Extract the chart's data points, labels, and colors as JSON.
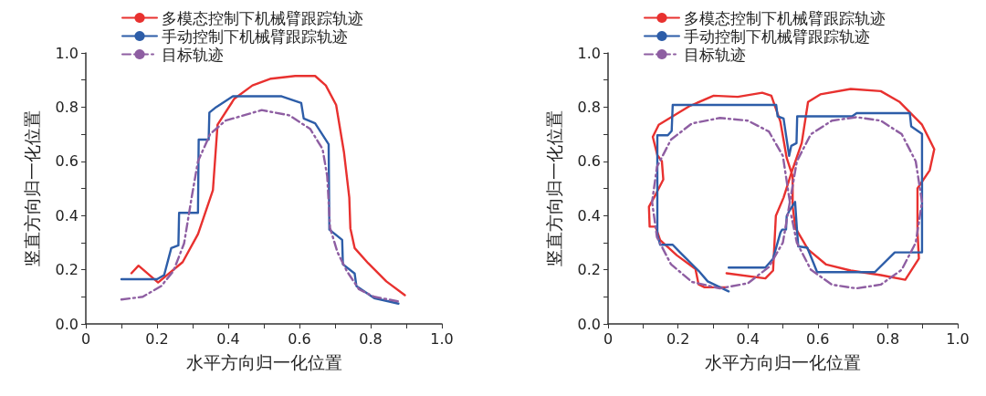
{
  "chart_data": [
    {
      "type": "line",
      "xlabel": "水平方向归一化位置",
      "ylabel": "竖直方向归一化位置",
      "xlim": [
        0,
        1
      ],
      "ylim": [
        0,
        1
      ],
      "xticks": [
        {
          "value": 0,
          "label": "0"
        },
        {
          "value": 0.1,
          "label": null
        },
        0.2,
        {
          "value": 0.3,
          "label": null
        },
        0.4,
        {
          "value": 0.5,
          "label": null
        },
        0.6,
        {
          "value": 0.7,
          "label": null
        },
        0.8,
        {
          "value": 0.9,
          "label": null
        },
        {
          "value": 1,
          "label": "1.0"
        }
      ],
      "yticks": [
        {
          "value": 0,
          "label": "0.0"
        },
        {
          "value": 0.1,
          "label": null
        },
        0.2,
        {
          "value": 0.3,
          "label": null
        },
        0.4,
        {
          "value": 0.5,
          "label": null
        },
        0.6,
        {
          "value": 0.7,
          "label": null
        },
        0.8,
        {
          "value": 0.9,
          "label": null
        },
        {
          "value": 1,
          "label": "1.0"
        }
      ],
      "grid": false,
      "legend": "top",
      "marker": "none",
      "series": [
        {
          "name": "多模态控制下机械臂跟踪轨迹",
          "color": "#e8312f",
          "line_style": "solid",
          "x": [
            0.128,
            0.148,
            0.203,
            0.272,
            0.315,
            0.357,
            0.37,
            0.417,
            0.468,
            0.52,
            0.588,
            0.644,
            0.674,
            0.703,
            0.725,
            0.74,
            0.743,
            0.755,
            0.793,
            0.844,
            0.896
          ],
          "values": [
            0.187,
            0.215,
            0.153,
            0.228,
            0.331,
            0.494,
            0.735,
            0.831,
            0.88,
            0.905,
            0.915,
            0.915,
            0.88,
            0.808,
            0.634,
            0.466,
            0.353,
            0.28,
            0.224,
            0.157,
            0.106
          ]
        },
        {
          "name": "手动控制下机械臂跟踪轨迹",
          "color": "#2d5da8",
          "line_style": "solid",
          "x": [
            0.1,
            0.2,
            0.22,
            0.24,
            0.26,
            0.262,
            0.315,
            0.317,
            0.345,
            0.347,
            0.366,
            0.413,
            0.55,
            0.605,
            0.612,
            0.644,
            0.682,
            0.684,
            0.72,
            0.722,
            0.755,
            0.76,
            0.81,
            0.878
          ],
          "values": [
            0.165,
            0.165,
            0.18,
            0.28,
            0.29,
            0.41,
            0.41,
            0.68,
            0.68,
            0.78,
            0.8,
            0.84,
            0.84,
            0.815,
            0.758,
            0.74,
            0.663,
            0.348,
            0.31,
            0.22,
            0.186,
            0.14,
            0.095,
            0.075
          ]
        },
        {
          "name": "目标轨迹",
          "color": "#8e5ea2",
          "line_style": "dashed",
          "x": [
            0.1,
            0.16,
            0.212,
            0.246,
            0.276,
            0.297,
            0.315,
            0.349,
            0.392,
            0.494,
            0.571,
            0.63,
            0.665,
            0.678,
            0.686,
            0.707,
            0.733,
            0.767,
            0.81,
            0.878
          ],
          "values": [
            0.09,
            0.1,
            0.14,
            0.195,
            0.297,
            0.465,
            0.6,
            0.7,
            0.75,
            0.789,
            0.77,
            0.72,
            0.645,
            0.545,
            0.354,
            0.264,
            0.195,
            0.128,
            0.1,
            0.083
          ]
        }
      ]
    },
    {
      "type": "line",
      "xlabel": "水平方向归一化位置",
      "ylabel": "竖直方向归一化位置",
      "xlim": [
        0,
        1
      ],
      "ylim": [
        0,
        1
      ],
      "xticks": [
        {
          "value": 0,
          "label": "0"
        },
        {
          "value": 0.1,
          "label": null
        },
        0.2,
        {
          "value": 0.3,
          "label": null
        },
        0.4,
        {
          "value": 0.5,
          "label": null
        },
        0.6,
        {
          "value": 0.7,
          "label": null
        },
        0.8,
        {
          "value": 0.9,
          "label": null
        },
        {
          "value": 1,
          "label": "1.0"
        }
      ],
      "yticks": [
        {
          "value": 0,
          "label": "0.0"
        },
        {
          "value": 0.1,
          "label": null
        },
        0.2,
        {
          "value": 0.3,
          "label": null
        },
        0.4,
        {
          "value": 0.5,
          "label": null
        },
        0.6,
        {
          "value": 0.7,
          "label": null
        },
        0.8,
        {
          "value": 0.9,
          "label": null
        },
        {
          "value": 1,
          "label": "1.0"
        }
      ],
      "grid": false,
      "legend": "top",
      "marker": "none",
      "series": [
        {
          "name": "多模态控制下机械臂跟踪轨迹",
          "color": "#e8312f",
          "line_style": "solid",
          "x": [
            0.339,
            0.45,
            0.472,
            0.48,
            0.502,
            0.524,
            0.554,
            0.572,
            0.607,
            0.694,
            0.78,
            0.833,
            0.898,
            0.933,
            0.92,
            0.885,
            0.885,
            0.889,
            0.85,
            0.78,
            0.694,
            0.624,
            0.572,
            0.536,
            0.528,
            0.528,
            0.511,
            0.493,
            0.467,
            0.441,
            0.371,
            0.302,
            0.232,
            0.145,
            0.128,
            0.141,
            0.154,
            0.158,
            0.136,
            0.117,
            0.119,
            0.136,
            0.149,
            0.197,
            0.25,
            0.259,
            0.276,
            0.337
          ],
          "values": [
            0.187,
            0.168,
            0.197,
            0.399,
            0.466,
            0.556,
            0.668,
            0.819,
            0.847,
            0.867,
            0.859,
            0.82,
            0.735,
            0.645,
            0.567,
            0.5,
            0.342,
            0.241,
            0.163,
            0.18,
            0.197,
            0.219,
            0.275,
            0.354,
            0.432,
            0.545,
            0.612,
            0.746,
            0.842,
            0.853,
            0.838,
            0.842,
            0.803,
            0.735,
            0.69,
            0.623,
            0.6,
            0.533,
            0.477,
            0.432,
            0.359,
            0.359,
            0.309,
            0.253,
            0.203,
            0.146,
            0.135,
            0.135
          ]
        },
        {
          "name": "手动控制下机械臂跟踪轨迹",
          "color": "#2d5da8",
          "line_style": "solid",
          "x": [
            0.345,
            0.45,
            0.472,
            0.493,
            0.498,
            0.509,
            0.511,
            0.52,
            0.535,
            0.54,
            0.544,
            0.57,
            0.598,
            0.763,
            0.82,
            0.898,
            0.898,
            0.867,
            0.863,
            0.711,
            0.698,
            0.541,
            0.539,
            0.524,
            0.518,
            0.502,
            0.485,
            0.481,
            0.185,
            0.182,
            0.171,
            0.141,
            0.141,
            0.149,
            0.185,
            0.206,
            0.259,
            0.285,
            0.345
          ],
          "values": [
            0.208,
            0.208,
            0.241,
            0.337,
            0.348,
            0.348,
            0.398,
            0.421,
            0.45,
            0.354,
            0.286,
            0.281,
            0.191,
            0.191,
            0.264,
            0.264,
            0.701,
            0.729,
            0.778,
            0.778,
            0.766,
            0.766,
            0.667,
            0.657,
            0.62,
            0.758,
            0.766,
            0.808,
            0.808,
            0.712,
            0.696,
            0.696,
            0.331,
            0.292,
            0.292,
            0.264,
            0.196,
            0.157,
            0.12
          ]
        },
        {
          "name": "目标轨迹",
          "color": "#8e5ea2",
          "line_style": "dashed",
          "x": [
            0.52,
            0.5,
            0.46,
            0.4,
            0.32,
            0.24,
            0.18,
            0.14,
            0.126,
            0.14,
            0.18,
            0.24,
            0.32,
            0.4,
            0.46,
            0.5,
            0.52,
            0.54,
            0.58,
            0.64,
            0.71,
            0.78,
            0.84,
            0.88,
            0.898,
            0.88,
            0.84,
            0.78,
            0.71,
            0.64,
            0.58,
            0.54,
            0.524
          ],
          "values": [
            0.45,
            0.62,
            0.71,
            0.75,
            0.76,
            0.74,
            0.68,
            0.58,
            0.45,
            0.32,
            0.22,
            0.155,
            0.131,
            0.15,
            0.21,
            0.3,
            0.45,
            0.6,
            0.7,
            0.75,
            0.763,
            0.75,
            0.7,
            0.6,
            0.45,
            0.3,
            0.2,
            0.145,
            0.131,
            0.145,
            0.2,
            0.3,
            0.4
          ]
        }
      ]
    }
  ]
}
